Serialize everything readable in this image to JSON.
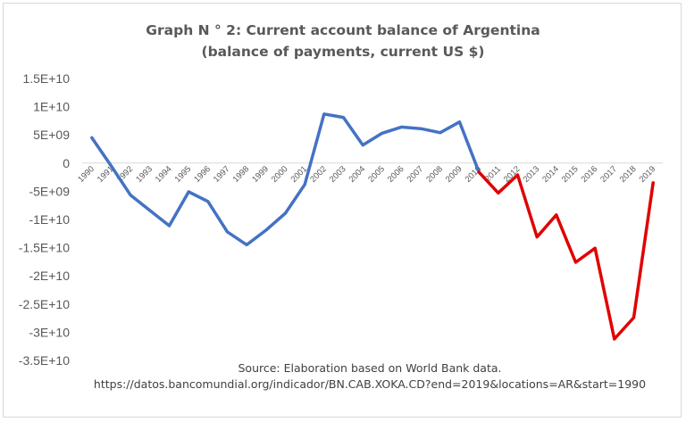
{
  "chart_data": {
    "type": "line",
    "title_line1": "Graph N ° 2: Current account balance of Argentina",
    "title_line2": "(balance of payments, current US $)",
    "xlabel": "",
    "ylabel": "",
    "ylim": [
      -35000000000,
      15000000000
    ],
    "y_ticks": [
      15000000000,
      10000000000,
      5000000000,
      0,
      -5000000000,
      -10000000000,
      -15000000000,
      -20000000000,
      -25000000000,
      -30000000000,
      -35000000000
    ],
    "y_tick_labels": [
      "1.5E+10",
      "1E+10",
      "5E+09",
      "0",
      "-5E+09",
      "-1E+10",
      "-1.5E+10",
      "-2E+10",
      "-2.5E+10",
      "-3E+10",
      "-3.5E+10"
    ],
    "categories": [
      "1990",
      "1991",
      "1992",
      "1993",
      "1994",
      "1995",
      "1996",
      "1997",
      "1998",
      "1999",
      "2000",
      "2001",
      "2002",
      "2003",
      "2004",
      "2005",
      "2006",
      "2007",
      "2008",
      "2009",
      "2010",
      "2011",
      "2012",
      "2013",
      "2014",
      "2015",
      "2016",
      "2017",
      "2018",
      "2019"
    ],
    "grid": false,
    "series": [
      {
        "color": "#4472c4",
        "x": [
          "1990",
          "1991",
          "1992",
          "1993",
          "1994",
          "1995",
          "1996",
          "1997",
          "1998",
          "1999",
          "2000",
          "2001",
          "2002",
          "2003",
          "2004",
          "2005",
          "2006",
          "2007",
          "2008",
          "2009",
          "2010"
        ],
        "values": [
          4500000000,
          -500000000,
          -5700000000,
          -8400000000,
          -11100000000,
          -5100000000,
          -6800000000,
          -12200000000,
          -14500000000,
          -11900000000,
          -8900000000,
          -3800000000,
          8700000000,
          8100000000,
          3200000000,
          5300000000,
          6400000000,
          6100000000,
          5400000000,
          7300000000,
          -1600000000
        ]
      },
      {
        "color": "#e00000",
        "x": [
          "2010",
          "2011",
          "2012",
          "2013",
          "2014",
          "2015",
          "2016",
          "2017",
          "2018",
          "2019"
        ],
        "values": [
          -1600000000,
          -5300000000,
          -2100000000,
          -13100000000,
          -9200000000,
          -17600000000,
          -15100000000,
          -31200000000,
          -27400000000,
          -3500000000
        ]
      }
    ],
    "source_line1": "Source: Elaboration based on World Bank data.",
    "source_line2": "https://datos.bancomundial.org/indicador/BN.CAB.XOKA.CD?end=2019&locations=AR&start=1990"
  }
}
